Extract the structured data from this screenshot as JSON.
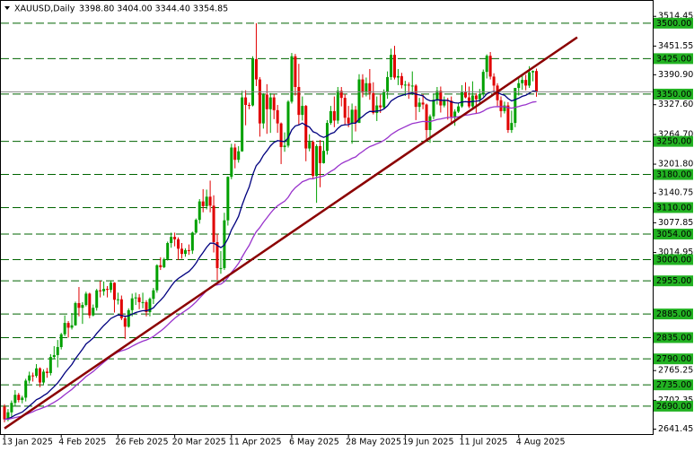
{
  "chart_data": {
    "type": "candlestick",
    "title": "XAUUSD,Daily",
    "subtitle": "3398.80 3404.00 3344.40 3354.85",
    "categories": [
      "13 Jan 2025",
      null,
      null,
      null,
      null,
      null,
      null,
      null,
      null,
      null,
      null,
      null,
      null,
      null,
      null,
      null,
      "4 Feb 2025",
      null,
      null,
      null,
      null,
      null,
      null,
      null,
      null,
      null,
      null,
      null,
      null,
      null,
      null,
      null,
      "26 Feb 2025",
      null,
      null,
      null,
      null,
      null,
      null,
      null,
      null,
      null,
      null,
      null,
      null,
      null,
      null,
      null,
      "20 Mar 2025",
      null,
      null,
      null,
      null,
      null,
      null,
      null,
      null,
      null,
      null,
      null,
      null,
      null,
      null,
      null,
      "11 Apr 2025",
      null,
      null,
      null,
      null,
      null,
      null,
      null,
      null,
      null,
      null,
      null,
      null,
      null,
      null,
      null,
      null,
      "6 May 2025",
      null,
      null,
      null,
      null,
      null,
      null,
      null,
      null,
      null,
      null,
      null,
      null,
      null,
      null,
      null,
      "28 May 2025",
      null,
      null,
      null,
      null,
      null,
      null,
      null,
      null,
      null,
      null,
      null,
      null,
      null,
      null,
      null,
      "19 Jun 2025",
      null,
      null,
      null,
      null,
      null,
      null,
      null,
      null,
      null,
      null,
      null,
      null,
      null,
      null,
      null,
      "11 Jul 2025",
      null,
      null,
      null,
      null,
      null,
      null,
      null,
      null,
      null,
      null,
      null,
      null,
      null,
      null,
      null,
      "4 Aug 2025",
      null,
      null,
      null,
      null,
      null
    ],
    "ohlc": [
      [
        2689,
        2694,
        2656,
        2662
      ],
      [
        2662,
        2684,
        2658,
        2677
      ],
      [
        2677,
        2702,
        2668,
        2697
      ],
      [
        2697,
        2724,
        2690,
        2714
      ],
      [
        2714,
        2718,
        2698,
        2703
      ],
      [
        2703,
        2712,
        2696,
        2708
      ],
      [
        2708,
        2748,
        2700,
        2744
      ],
      [
        2744,
        2763,
        2738,
        2755
      ],
      [
        2755,
        2761,
        2742,
        2754
      ],
      [
        2754,
        2779,
        2750,
        2770
      ],
      [
        2770,
        2772,
        2730,
        2740
      ],
      [
        2740,
        2768,
        2736,
        2763
      ],
      [
        2763,
        2771,
        2750,
        2760
      ],
      [
        2760,
        2800,
        2755,
        2794
      ],
      [
        2794,
        2817,
        2790,
        2798
      ],
      [
        2798,
        2830,
        2772,
        2815
      ],
      [
        2815,
        2845,
        2810,
        2842
      ],
      [
        2842,
        2882,
        2838,
        2866
      ],
      [
        2866,
        2870,
        2835,
        2856
      ],
      [
        2856,
        2887,
        2852,
        2861
      ],
      [
        2861,
        2911,
        2860,
        2908
      ],
      [
        2908,
        2942,
        2880,
        2898
      ],
      [
        2898,
        2910,
        2864,
        2904
      ],
      [
        2904,
        2932,
        2901,
        2928
      ],
      [
        2928,
        2930,
        2876,
        2882
      ],
      [
        2882,
        2905,
        2880,
        2898
      ],
      [
        2898,
        2938,
        2892,
        2935
      ],
      [
        2935,
        2955,
        2920,
        2933
      ],
      [
        2933,
        2954,
        2924,
        2938
      ],
      [
        2938,
        2944,
        2920,
        2936
      ],
      [
        2936,
        2956,
        2930,
        2951
      ],
      [
        2951,
        2952,
        2888,
        2915
      ],
      [
        2915,
        2930,
        2905,
        2916
      ],
      [
        2916,
        2924,
        2872,
        2876
      ],
      [
        2876,
        2882,
        2832,
        2858
      ],
      [
        2858,
        2897,
        2856,
        2893
      ],
      [
        2893,
        2928,
        2880,
        2918
      ],
      [
        2918,
        2930,
        2904,
        2920
      ],
      [
        2920,
        2927,
        2895,
        2910
      ],
      [
        2910,
        2930,
        2897,
        2910
      ],
      [
        2910,
        2914,
        2880,
        2889
      ],
      [
        2889,
        2920,
        2880,
        2917
      ],
      [
        2917,
        2940,
        2906,
        2935
      ],
      [
        2935,
        2990,
        2930,
        2988
      ],
      [
        2988,
        3005,
        2978,
        2984
      ],
      [
        2984,
        3004,
        2982,
        3001
      ],
      [
        3001,
        3038,
        2998,
        3035
      ],
      [
        3035,
        3057,
        3025,
        3048
      ],
      [
        3048,
        3057,
        3028,
        3043
      ],
      [
        3043,
        3047,
        2999,
        3023
      ],
      [
        3023,
        3035,
        3002,
        3012
      ],
      [
        3012,
        3024,
        3006,
        3020
      ],
      [
        3020,
        3032,
        3010,
        3019
      ],
      [
        3019,
        3059,
        3012,
        3057
      ],
      [
        3057,
        3087,
        3055,
        3084
      ],
      [
        3084,
        3128,
        3076,
        3123
      ],
      [
        3123,
        3149,
        3100,
        3113
      ],
      [
        3113,
        3148,
        3106,
        3133
      ],
      [
        3133,
        3167,
        3100,
        3114
      ],
      [
        3114,
        3136,
        3015,
        3037
      ],
      [
        3037,
        3055,
        2957,
        2982
      ],
      [
        2982,
        3018,
        2970,
        2982
      ],
      [
        2982,
        3099,
        2978,
        3083
      ],
      [
        3083,
        3176,
        3072,
        3175
      ],
      [
        3175,
        3245,
        3170,
        3237
      ],
      [
        3237,
        3245,
        3193,
        3211
      ],
      [
        3211,
        3240,
        3205,
        3229
      ],
      [
        3229,
        3357,
        3228,
        3343
      ],
      [
        3343,
        3358,
        3284,
        3327
      ],
      [
        3327,
        3332,
        3318,
        3326
      ],
      [
        3326,
        3430,
        3324,
        3424
      ],
      [
        3424,
        3500,
        3367,
        3381
      ],
      [
        3381,
        3386,
        3260,
        3288
      ],
      [
        3288,
        3352,
        3277,
        3349
      ],
      [
        3349,
        3371,
        3266,
        3318
      ],
      [
        3318,
        3352,
        3268,
        3343
      ],
      [
        3343,
        3350,
        3297,
        3316
      ],
      [
        3316,
        3327,
        3268,
        3288
      ],
      [
        3288,
        3290,
        3202,
        3238
      ],
      [
        3238,
        3269,
        3228,
        3241
      ],
      [
        3241,
        3337,
        3237,
        3334
      ],
      [
        3334,
        3437,
        3330,
        3430
      ],
      [
        3430,
        3435,
        3347,
        3365
      ],
      [
        3365,
        3414,
        3286,
        3306
      ],
      [
        3306,
        3345,
        3294,
        3325
      ],
      [
        3325,
        3327,
        3208,
        3235
      ],
      [
        3235,
        3265,
        3229,
        3249
      ],
      [
        3249,
        3252,
        3172,
        3177
      ],
      [
        3177,
        3244,
        3120,
        3240
      ],
      [
        3240,
        3253,
        3153,
        3204
      ],
      [
        3204,
        3250,
        3203,
        3230
      ],
      [
        3230,
        3295,
        3222,
        3289
      ],
      [
        3289,
        3325,
        3285,
        3314
      ],
      [
        3314,
        3345,
        3280,
        3294
      ],
      [
        3294,
        3365,
        3287,
        3357
      ],
      [
        3357,
        3365,
        3324,
        3342
      ],
      [
        3342,
        3350,
        3285,
        3300
      ],
      [
        3300,
        3325,
        3280,
        3288
      ],
      [
        3288,
        3330,
        3245,
        3317
      ],
      [
        3317,
        3325,
        3271,
        3289
      ],
      [
        3289,
        3392,
        3289,
        3381
      ],
      [
        3381,
        3392,
        3343,
        3353
      ],
      [
        3353,
        3385,
        3345,
        3373
      ],
      [
        3373,
        3403,
        3338,
        3352
      ],
      [
        3352,
        3375,
        3307,
        3310
      ],
      [
        3310,
        3345,
        3293,
        3326
      ],
      [
        3326,
        3349,
        3310,
        3322
      ],
      [
        3322,
        3360,
        3318,
        3354
      ],
      [
        3354,
        3398,
        3340,
        3386
      ],
      [
        3386,
        3446,
        3380,
        3433
      ],
      [
        3433,
        3452,
        3381,
        3385
      ],
      [
        3385,
        3403,
        3369,
        3388
      ],
      [
        3388,
        3395,
        3362,
        3369
      ],
      [
        3369,
        3378,
        3346,
        3370
      ],
      [
        3370,
        3375,
        3340,
        3368
      ],
      [
        3368,
        3398,
        3348,
        3368
      ],
      [
        3368,
        3371,
        3295,
        3323
      ],
      [
        3323,
        3342,
        3312,
        3332
      ],
      [
        3332,
        3350,
        3318,
        3328
      ],
      [
        3328,
        3330,
        3255,
        3274
      ],
      [
        3274,
        3307,
        3247,
        3303
      ],
      [
        3303,
        3350,
        3297,
        3338
      ],
      [
        3338,
        3365,
        3328,
        3357
      ],
      [
        3357,
        3366,
        3311,
        3326
      ],
      [
        3326,
        3345,
        3322,
        3337
      ],
      [
        3337,
        3342,
        3296,
        3336
      ],
      [
        3336,
        3345,
        3287,
        3302
      ],
      [
        3302,
        3318,
        3283,
        3313
      ],
      [
        3313,
        3331,
        3310,
        3324
      ],
      [
        3324,
        3369,
        3321,
        3355
      ],
      [
        3355,
        3375,
        3341,
        3343
      ],
      [
        3343,
        3366,
        3320,
        3324
      ],
      [
        3324,
        3377,
        3319,
        3347
      ],
      [
        3347,
        3352,
        3310,
        3339
      ],
      [
        3339,
        3361,
        3330,
        3350
      ],
      [
        3350,
        3402,
        3345,
        3397
      ],
      [
        3397,
        3434,
        3383,
        3431
      ],
      [
        3431,
        3439,
        3381,
        3387
      ],
      [
        3387,
        3394,
        3351,
        3368
      ],
      [
        3368,
        3373,
        3325,
        3337
      ],
      [
        3337,
        3345,
        3301,
        3314
      ],
      [
        3314,
        3334,
        3309,
        3326
      ],
      [
        3326,
        3333,
        3268,
        3274
      ],
      [
        3274,
        3315,
        3268,
        3289
      ],
      [
        3289,
        3363,
        3280,
        3363
      ],
      [
        3363,
        3385,
        3347,
        3373
      ],
      [
        3373,
        3390,
        3359,
        3380
      ],
      [
        3380,
        3391,
        3358,
        3368
      ],
      [
        3368,
        3409,
        3363,
        3396
      ],
      [
        3396,
        3400,
        3377,
        3398.8
      ],
      [
        3398.8,
        3404,
        3344.4,
        3354.85
      ]
    ],
    "up_color": "#00a000",
    "down_color": "#e00000",
    "ylim": [
      2631,
      3549
    ],
    "yticks": [
      {
        "value": 3514.45,
        "label": "3514.45"
      },
      {
        "value": 3451.55,
        "label": "3451.55"
      },
      {
        "value": 3390.9,
        "label": "3390.90"
      },
      {
        "value": 3327.6,
        "label": "3327.60"
      },
      {
        "value": 3264.7,
        "label": "3264.70"
      },
      {
        "value": 3201.8,
        "label": "3201.80"
      },
      {
        "value": 3140.75,
        "label": "3140.75"
      },
      {
        "value": 3077.85,
        "label": "3077.85"
      },
      {
        "value": 3014.95,
        "label": "3014.95"
      },
      {
        "value": 2765.25,
        "label": "2765.25"
      },
      {
        "value": 2702.35,
        "label": "2702.35"
      },
      {
        "value": 2641.45,
        "label": "2641.45"
      }
    ],
    "levels": [
      {
        "value": 3500,
        "label": "3500.00"
      },
      {
        "value": 3425,
        "label": "3425.00"
      },
      {
        "value": 3350,
        "label": "3350.00"
      },
      {
        "value": 3250,
        "label": "3250.00"
      },
      {
        "value": 3180,
        "label": "3180.00"
      },
      {
        "value": 3110,
        "label": "3110.00"
      },
      {
        "value": 3054,
        "label": "3054.00"
      },
      {
        "value": 3000,
        "label": "3000.00"
      },
      {
        "value": 2955,
        "label": "2955.00"
      },
      {
        "value": 2885,
        "label": "2885.00"
      },
      {
        "value": 2835,
        "label": "2835.00"
      },
      {
        "value": 2790,
        "label": "2790.00"
      },
      {
        "value": 2735,
        "label": "2735.00"
      },
      {
        "value": 2690,
        "label": "2690.00"
      }
    ],
    "level_color": "#006400",
    "level_box_color": "#22b222",
    "trendline": {
      "x": [
        0,
        161.5
      ],
      "values": [
        2643,
        3470
      ],
      "color": "#8b0000"
    },
    "indicators": [
      {
        "type": "ema",
        "period": 20,
        "color": "#00007f"
      },
      {
        "type": "ema",
        "period": 50,
        "color": "#9933cc"
      }
    ]
  }
}
